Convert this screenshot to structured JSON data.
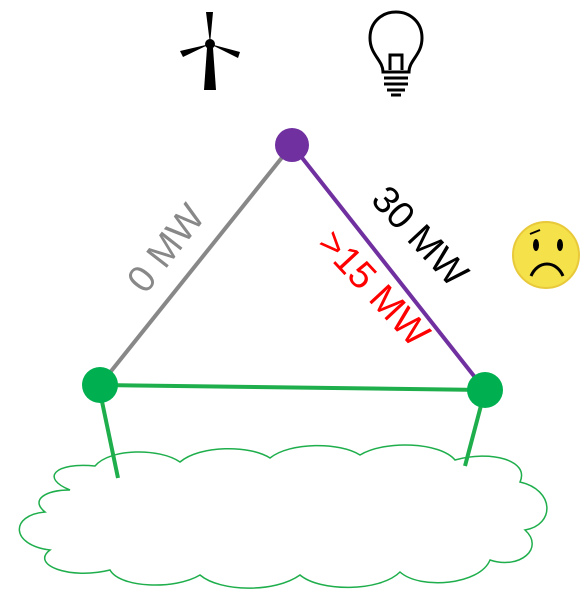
{
  "edges": [
    {
      "label": "0 MW"
    },
    {
      "label": "30 MW",
      "sublabel": ">15 MW"
    }
  ]
}
